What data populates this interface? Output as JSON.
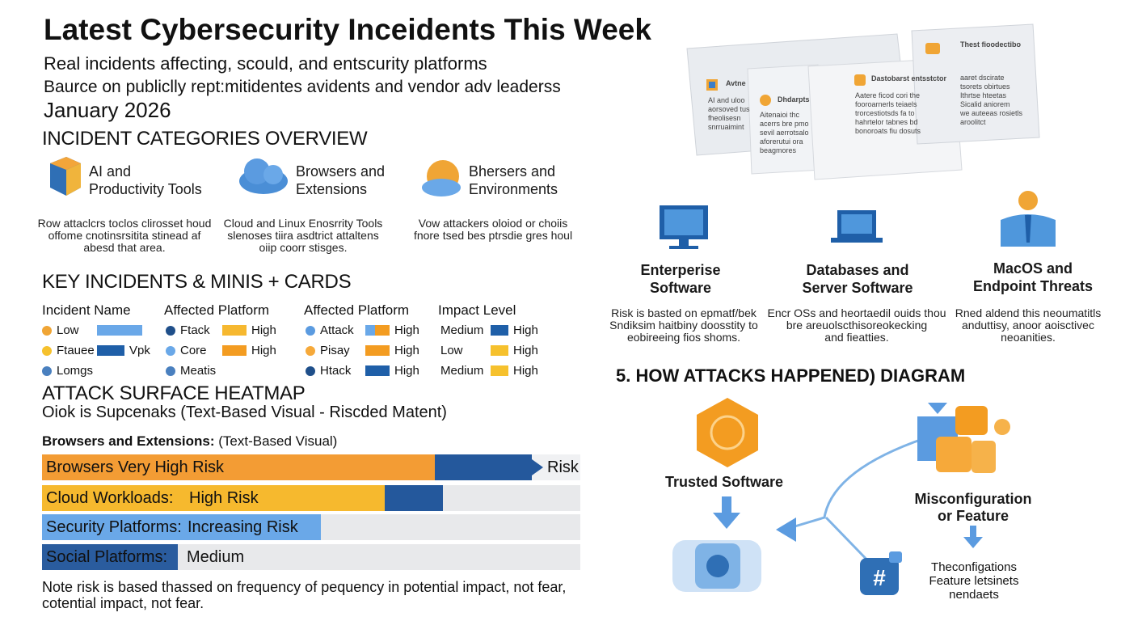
{
  "header": {
    "title": "Latest Cybersecurity Inceidents This Week",
    "subtitle": "Real incidents affecting, scould, and entscurity platforms",
    "source": "Baurce on publiclly rept:mitidentes avidents and vendor adv leaderss",
    "date": "January 2026"
  },
  "categories": {
    "heading": "INCIDENT CATEGORIES OVERVIEW",
    "items": [
      {
        "title": [
          "AI and",
          "Productivity Tools"
        ],
        "desc": [
          "Row attaclcrs toclos clirosset houd",
          "offome cnotinsrsitita stinead af",
          "abesd that area."
        ]
      },
      {
        "title": [
          "Browsers and",
          "Extensions"
        ],
        "desc": [
          "Cloud and Linux Enosrrity Tools",
          "slenoses tiira asdtrict attaltens",
          "oiip coorr stisges."
        ]
      },
      {
        "title": [
          "Bhersers and",
          "Environments"
        ],
        "desc": [
          "Vow attackers oloiod or choiis",
          "fnore tsed bes ptrsdie gres houl"
        ]
      }
    ]
  },
  "key_incidents": {
    "heading": "KEY INCIDENTS & MINIS + CARDS",
    "columns": [
      "Incident Name",
      "Affected Platform",
      "Affected Platform",
      "Impact Level"
    ],
    "rows": [
      [
        {
          "label": "Low"
        },
        {
          "label": "Ftack",
          "bar": "High"
        },
        {
          "label": "Attack",
          "bar": "High"
        },
        {
          "label": "Medium",
          "bar": "High"
        }
      ],
      [
        {
          "label": "Ftauee",
          "bar": "Vpk"
        },
        {
          "label": "Core",
          "bar": "High"
        },
        {
          "label": "Pisay",
          "bar": "High"
        },
        {
          "label": "Low",
          "bar": "High"
        }
      ],
      [
        {
          "label": "Lomgs"
        },
        {
          "label": "Meatis"
        },
        {
          "label": "Htack",
          "bar": "High"
        },
        {
          "label": "Medium",
          "bar": "High"
        }
      ]
    ]
  },
  "heatmap": {
    "heading": "ATTACK SURFACE HEATMAP",
    "subtitle": "Oiok is Supcenaks (Text-Based Visual - Riscded Matent)",
    "label": "Browsers and Extensions:",
    "label_note": "(Text-Based Visual)",
    "bars": [
      {
        "name": "Browsers Very High Risk",
        "end": "Risk"
      },
      {
        "name": "Cloud Workloads:",
        "level": "High Risk"
      },
      {
        "name": "Security Platforms:",
        "level": "Increasing Risk"
      },
      {
        "name": "Social Platforms:",
        "level": "Medium"
      }
    ],
    "note": [
      "Note risk is based thassed on frequency of pequency in potential impact, not fear,",
      "cotential impact, not fear."
    ]
  },
  "documents": [
    {
      "title": "Avtne",
      "lines": [
        "AI and uloo",
        "aorsoved tus",
        "fheolisesn",
        "snrruaimint"
      ]
    },
    {
      "title": "Dhdarpts",
      "lines": [
        "Aitenaioi thc",
        "acerrs bre pmo",
        "sevil aerrotsalo",
        "aforerutui ora",
        "beagmores"
      ]
    },
    {
      "title": "Dastobarst entsstctor",
      "lines": [
        "Aatere ficod cori the",
        "fooroarnerls teiaels",
        "trorcestiotsds fa to",
        "hahrtelor tabnes bd",
        "bonoroats fiu dosuts"
      ]
    },
    {
      "title": "Thest fioodectibo",
      "lines": [
        "aaret dscirate",
        "tsorets obirtues",
        "Ithrtse hteetas",
        "Sicalid aniorem",
        "we auteeas rosietls",
        "aroolitct"
      ]
    }
  ],
  "platforms": [
    {
      "title": [
        "Enterperise",
        "Software"
      ],
      "desc": [
        "Risk is basted on epmatf/bek",
        "Sndiksim haitbiny doosstity to",
        "eobireeing fios shoms."
      ]
    },
    {
      "title": [
        "Databases and",
        "Server Software"
      ],
      "desc": [
        "Encr OSs and heortaedil ouids thou",
        "bre areuolscthisoreokecking",
        "and fieatties."
      ]
    },
    {
      "title": [
        "MacOS and",
        "Endpoint Threats"
      ],
      "desc": [
        "Rned aldend this neoumatitls",
        "anduttisy, anoor aoisctivec",
        "neoanities."
      ]
    }
  ],
  "diagram": {
    "heading": "5. HOW ATTACKS HAPPENED) DIAGRAM",
    "nodes": [
      {
        "label": [
          "Trusted Software"
        ]
      },
      {
        "label": [
          "Misconfiguration",
          "or Feature"
        ]
      },
      {
        "label": [
          "Theconfigations",
          "Feature letsinets",
          "nendaets"
        ]
      }
    ]
  }
}
